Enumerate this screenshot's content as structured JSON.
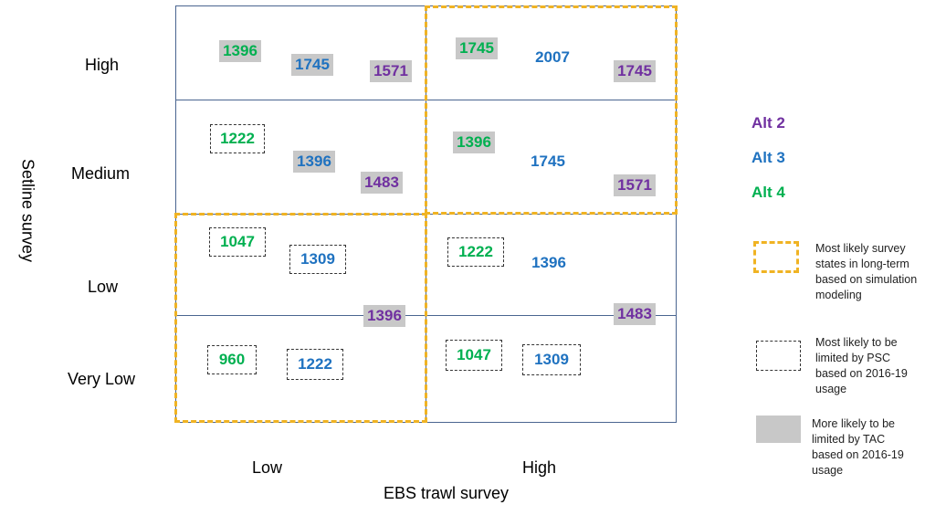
{
  "axes": {
    "x_title": "EBS trawl survey",
    "y_title": "Setline survey",
    "x_levels": [
      "Low",
      "High"
    ],
    "y_levels": [
      "High",
      "Medium",
      "Low",
      "Very Low"
    ]
  },
  "cells": {
    "high_low": {
      "alt4": "1396",
      "alt3": "1745",
      "alt2": "1571"
    },
    "high_high": {
      "alt4": "1745",
      "alt3": "2007",
      "alt2": "1745"
    },
    "medium_low": {
      "alt4": "1222",
      "alt3": "1396",
      "alt2": "1483"
    },
    "medium_high": {
      "alt4": "1396",
      "alt3": "1745",
      "alt2": "1571"
    },
    "low_low": {
      "alt4": "1047",
      "alt3": "1309",
      "alt2_shared": "1396"
    },
    "low_high": {
      "alt4": "1222",
      "alt3": "1396",
      "alt2_shared": "1483"
    },
    "vlow_low": {
      "alt4": "960",
      "alt3": "1222"
    },
    "vlow_high": {
      "alt4": "1047",
      "alt3": "1309"
    }
  },
  "legend": {
    "alt2": "Alt 2",
    "alt3": "Alt 3",
    "alt4": "Alt 4",
    "gold_text": "Most likely survey states in long-term based on simulation modeling",
    "psc_text": "Most likely to be limited by PSC based on 2016-19 usage",
    "tac_text": "More likely to be limited by TAC based on 2016-19 usage"
  },
  "colors": {
    "alt2": "#7030a0",
    "alt3": "#1f72c0",
    "alt4": "#00b050",
    "gold": "#f0b323",
    "tac_fill": "#c8c8c8",
    "grid": "#4a6590"
  }
}
